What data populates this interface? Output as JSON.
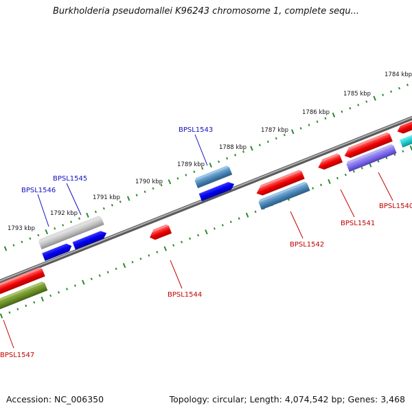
{
  "title": "Burkholderia pseudomallei K96243 chromosome 1, complete sequ...",
  "footer": {
    "accession": "Accession: NC_006350",
    "summary": "Topology: circular; Length: 4,074,542 bp; Genes: 3,468"
  },
  "colors": {
    "backbone": "#7a7a7a",
    "tick": "#2a8a2a",
    "forward_label": "#1010c0",
    "reverse_label": "#c00000"
  },
  "scale_labels": [
    "1784 kbp",
    "1785 kbp",
    "1786 kbp",
    "1787 kbp",
    "1788 kbp",
    "1789 kbp",
    "1790 kbp",
    "1791 kbp",
    "1792 kbp",
    "1793 kbp"
  ],
  "genes": {
    "forward": [
      {
        "name": "BPSL1543"
      },
      {
        "name": "BPSL1545"
      },
      {
        "name": "BPSL1546"
      }
    ],
    "reverse": [
      {
        "name": "BPSL1540"
      },
      {
        "name": "BPSL1541"
      },
      {
        "name": "BPSL1542"
      },
      {
        "name": "BPSL1544"
      },
      {
        "name": "BPSL1547"
      }
    ]
  }
}
